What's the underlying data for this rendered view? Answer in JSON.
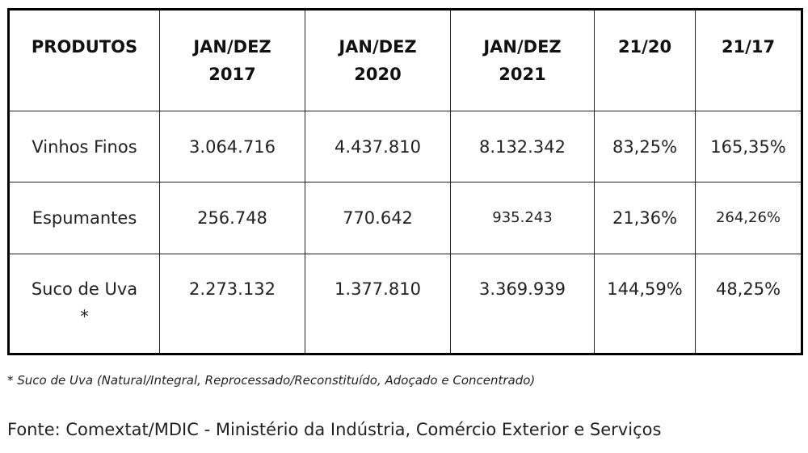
{
  "table": {
    "headers": [
      [
        "PRODUTOS"
      ],
      [
        "JAN/DEZ",
        "2017"
      ],
      [
        "JAN/DEZ",
        "2020"
      ],
      [
        "JAN/DEZ",
        "2021"
      ],
      [
        "21/20"
      ],
      [
        "21/17"
      ]
    ],
    "rows": [
      {
        "product": [
          "Vinhos Finos"
        ],
        "y2017": "3.064.716",
        "y2020": "4.437.810",
        "y2021": "8.132.342",
        "r2120": "83,25%",
        "r2117": "165,35%"
      },
      {
        "product": [
          "Espumantes"
        ],
        "y2017": "256.748",
        "y2020": "770.642",
        "y2021": "935.243",
        "r2120": "21,36%",
        "r2117": "264,26%"
      },
      {
        "product": [
          "Suco de Uva",
          "*"
        ],
        "y2017": "2.273.132",
        "y2020": "1.377.810",
        "y2021": "3.369.939",
        "r2120": "144,59%",
        "r2117": "48,25%"
      }
    ]
  },
  "footnote": "* Suco de Uva (Natural/Integral, Reprocessado/Reconstituído, Adoçado e Concentrado)",
  "source": "Fonte: Comextat/MDIC - Ministério da Indústria, Comércio Exterior e Serviços"
}
